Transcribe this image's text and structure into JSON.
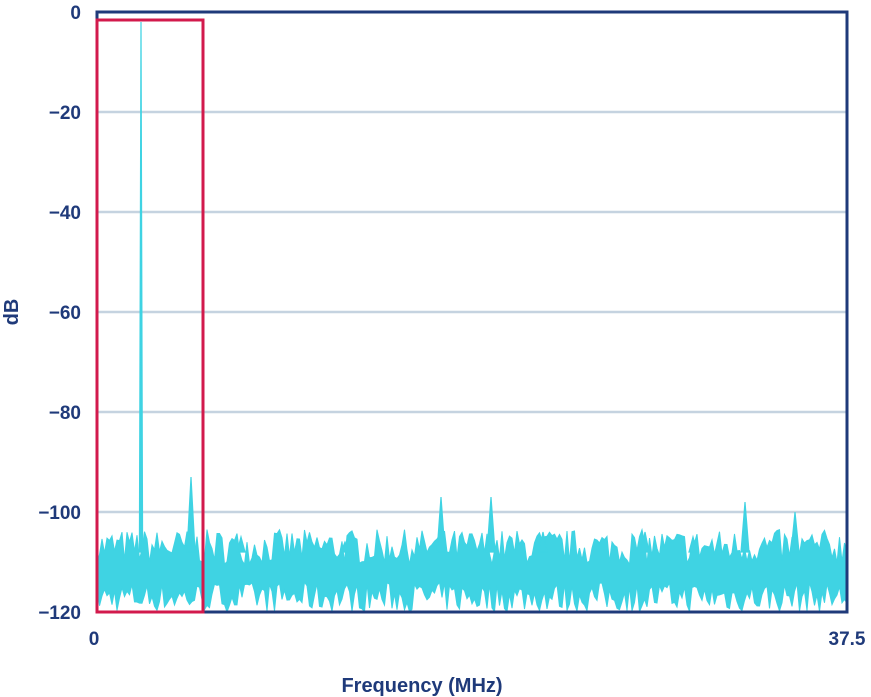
{
  "chart_data": {
    "type": "area",
    "title": "",
    "xlabel": "Frequency (MHz)",
    "ylabel": "dB",
    "xlim": [
      0,
      37.5
    ],
    "ylim": [
      -120,
      0
    ],
    "x_tick_labels": [
      {
        "value": 0,
        "label": "0"
      },
      {
        "value": 37.5,
        "label": "37.5"
      }
    ],
    "y_tick_labels": [
      {
        "value": 0,
        "label": "0"
      },
      {
        "value": -20,
        "label": "−20"
      },
      {
        "value": -40,
        "label": "−40"
      },
      {
        "value": -60,
        "label": "−60"
      },
      {
        "value": -80,
        "label": "−80"
      },
      {
        "value": -100,
        "label": "−100"
      },
      {
        "value": -120,
        "label": "−120"
      }
    ],
    "grid": {
      "horizontal": true,
      "vertical": false
    },
    "noise_floor": {
      "center_db": -112,
      "low_db": -118,
      "high_db": -106
    },
    "peaks": [
      {
        "x": 2.2,
        "y": -2
      },
      {
        "x": 4.7,
        "y": -93
      },
      {
        "x": 7.2,
        "y": -105
      },
      {
        "x": 12.4,
        "y": -106
      },
      {
        "x": 17.2,
        "y": -97
      },
      {
        "x": 19.7,
        "y": -97
      },
      {
        "x": 22.3,
        "y": -104
      },
      {
        "x": 27.4,
        "y": -104
      },
      {
        "x": 29.8,
        "y": -105
      },
      {
        "x": 32.4,
        "y": -98
      },
      {
        "x": 34.9,
        "y": -100
      }
    ],
    "highlight_region": {
      "x_start": 0,
      "x_end": 5.3,
      "y_start": -120,
      "y_end": 0
    },
    "colors": {
      "series": "#3fd3e3",
      "axis": "#1f3a7a",
      "grid": "#c5d3e0",
      "highlight": "#d21a4c"
    }
  }
}
